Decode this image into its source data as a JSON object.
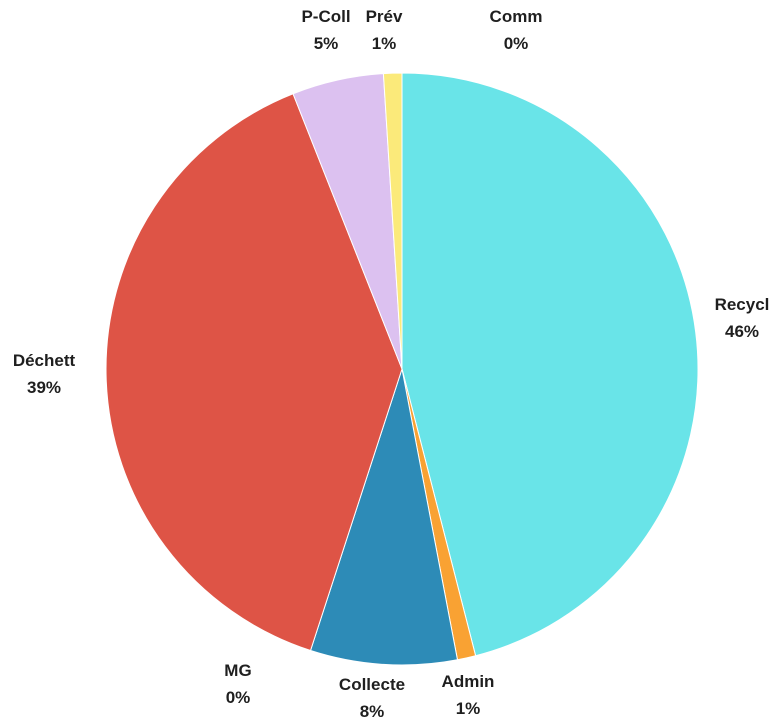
{
  "chart_data": {
    "type": "pie",
    "title": "",
    "slices": [
      {
        "label": "Recycl",
        "percent_label": "46%",
        "value": 46.0,
        "color": "#69e4e8"
      },
      {
        "label": "Admin",
        "percent_label": "1%",
        "value": 1.0,
        "color": "#f9a233"
      },
      {
        "label": "Collecte",
        "percent_label": "8%",
        "value": 8.0,
        "color": "#2d8bb7"
      },
      {
        "label": "MG",
        "percent_label": "0%",
        "value": 0.0,
        "color": "#3ecfa0"
      },
      {
        "label": "Déchett",
        "percent_label": "39%",
        "value": 39.0,
        "color": "#de5446"
      },
      {
        "label": "P-Coll",
        "percent_label": "5%",
        "value": 5.0,
        "color": "#dcc1f0"
      },
      {
        "label": "Prév",
        "percent_label": "1%",
        "value": 1.0,
        "color": "#fbea7a"
      },
      {
        "label": "Comm",
        "percent_label": "0%",
        "value": 0.0,
        "color": "#9be38d"
      }
    ],
    "start_angle": "12 o'clock",
    "direction": "clockwise",
    "legend": "none"
  }
}
